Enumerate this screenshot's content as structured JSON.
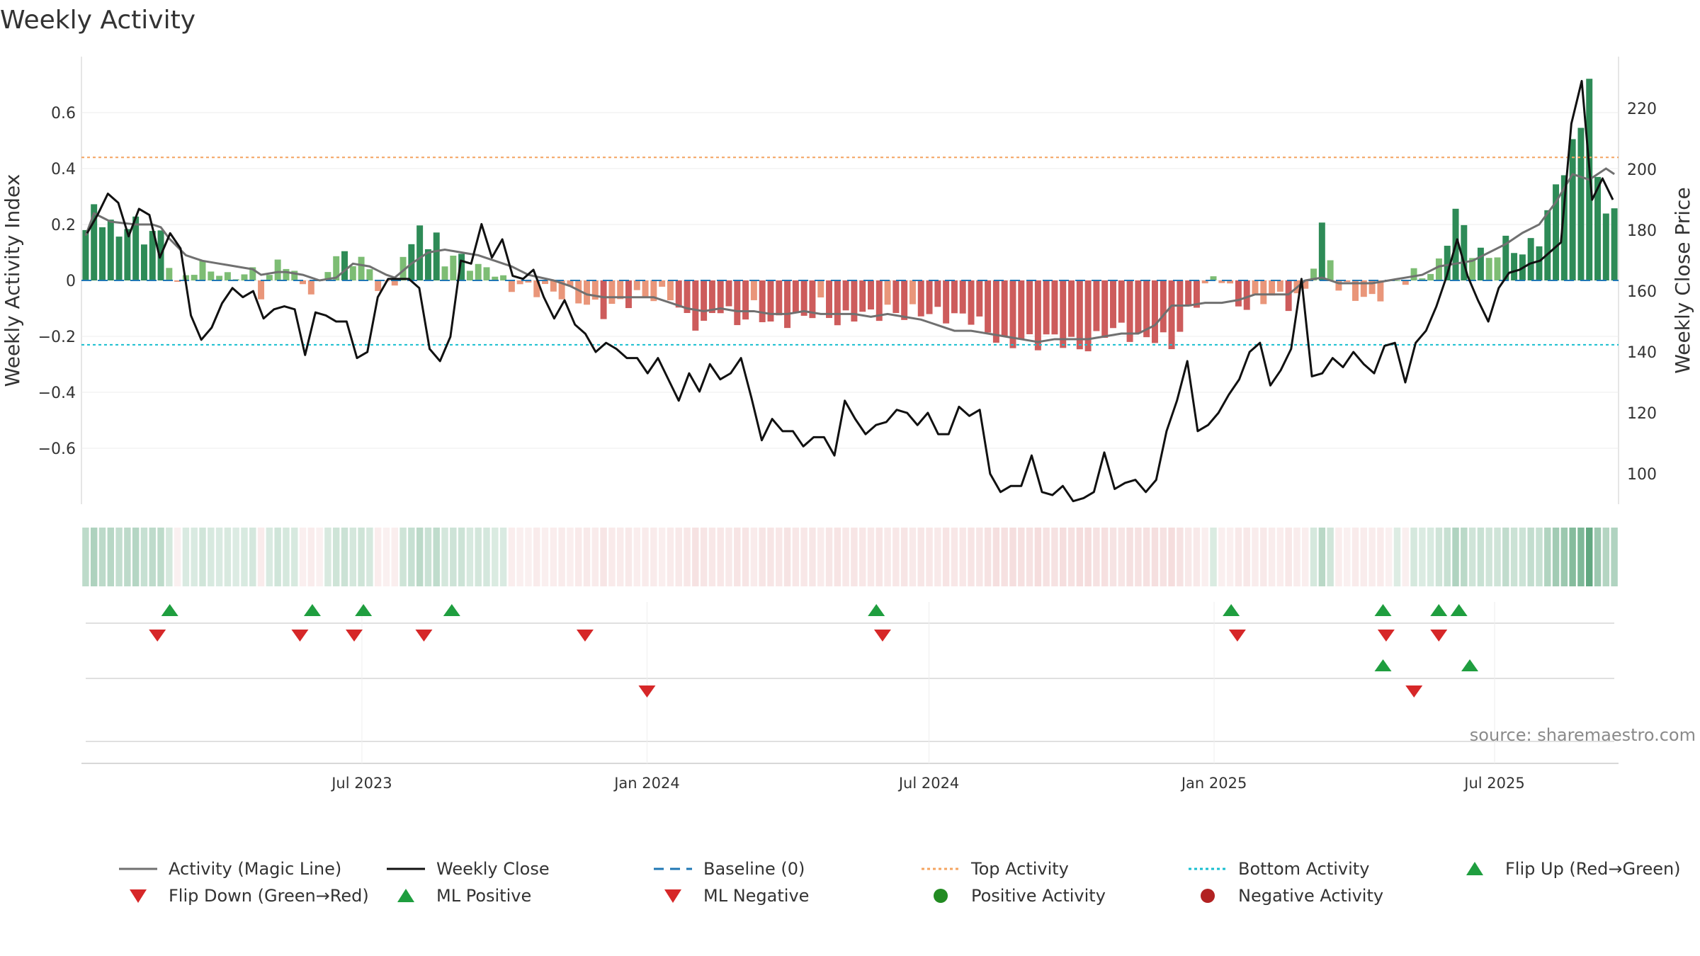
{
  "title": "Weekly Activity",
  "source": "source: sharemaestro.com",
  "colors": {
    "strong_green": "#2e8b57",
    "light_green": "#7dbd74",
    "strong_red": "#cd5c5c",
    "light_red": "#e9967a",
    "magic_line": "#707070",
    "close_line": "#111111",
    "baseline": "#1f77b4",
    "top_line": "#f4a460",
    "bottom_line": "#17becf",
    "marker_up": "#1f9e3f",
    "marker_down": "#d62728",
    "dot_pos": "#228b22",
    "dot_neg": "#b22222"
  },
  "chart_data": {
    "type": "bar",
    "start_date": "2023-01-01",
    "end_date": "2025-09-19",
    "y_left": {
      "label": "Weekly Activity Index",
      "ylim": [
        -0.8,
        0.8
      ],
      "ticks": [
        0.6,
        0.4,
        0.2,
        0,
        -0.2,
        -0.4,
        -0.6
      ],
      "tick_labels": [
        "0.6",
        "0.4",
        "0.2",
        "0",
        "−0.2",
        "−0.4",
        "−0.6"
      ]
    },
    "y_right": {
      "label": "Weekly Close Price",
      "ylim": [
        90,
        237
      ],
      "ticks": [
        220,
        200,
        180,
        160,
        140,
        120,
        100
      ],
      "tick_labels": [
        "220",
        "200",
        "180",
        "160",
        "140",
        "120",
        "100"
      ]
    },
    "x_ticks": [
      {
        "label": "Jul 2023",
        "date": "2023-07-01"
      },
      {
        "label": "Jan 2024",
        "date": "2024-01-01"
      },
      {
        "label": "Jul 2024",
        "date": "2024-07-01"
      },
      {
        "label": "Jan 2025",
        "date": "2025-01-01"
      },
      {
        "label": "Jul 2025",
        "date": "2025-07-01"
      }
    ],
    "top_activity": 0.44,
    "bottom_activity": -0.23,
    "baseline": 0,
    "activity_knots": [
      [
        0,
        0.18
      ],
      [
        1,
        0.25
      ],
      [
        2,
        0.22
      ],
      [
        3,
        0.2
      ],
      [
        4,
        0.15
      ],
      [
        5,
        0.21
      ],
      [
        6,
        0.2
      ],
      [
        7,
        0.14
      ],
      [
        8,
        0.19
      ],
      [
        9,
        0.15
      ],
      [
        10,
        0.07
      ],
      [
        11,
        -0.01
      ],
      [
        12,
        0.0
      ],
      [
        13,
        0.05
      ],
      [
        14,
        0.05
      ],
      [
        15,
        0.03
      ],
      [
        16,
        0.04
      ],
      [
        17,
        0.0
      ],
      [
        18,
        0.02
      ],
      [
        19,
        0.03
      ],
      [
        20,
        0.02
      ],
      [
        21,
        -0.04
      ],
      [
        22,
        0.01
      ],
      [
        23,
        0.06
      ],
      [
        24,
        0.07
      ],
      [
        25,
        0.01
      ],
      [
        26,
        -0.01
      ],
      [
        27,
        -0.03
      ],
      [
        28,
        -0.03
      ],
      [
        29,
        0.05
      ],
      [
        30,
        0.09
      ],
      [
        31,
        0.08
      ],
      [
        32,
        0.08
      ],
      [
        33,
        0.07
      ],
      [
        34,
        0.03
      ],
      [
        35,
        -0.01
      ],
      [
        36,
        -0.03
      ],
      [
        37,
        -0.01
      ],
      [
        38,
        0.1
      ],
      [
        39,
        0.1
      ],
      [
        40,
        0.22
      ],
      [
        41,
        0.11
      ],
      [
        42,
        0.15
      ],
      [
        43,
        0.08
      ],
      [
        44,
        0.07
      ],
      [
        45,
        0.09
      ],
      [
        46,
        0.06
      ],
      [
        47,
        0.03
      ],
      [
        48,
        0.06
      ],
      [
        50,
        -0.01
      ],
      [
        54,
        -0.03
      ],
      [
        58,
        -0.05
      ],
      [
        60,
        -0.08
      ],
      [
        62,
        -0.11
      ],
      [
        64,
        -0.08
      ],
      [
        66,
        -0.06
      ],
      [
        70,
        -0.05
      ],
      [
        72,
        -0.14
      ],
      [
        74,
        -0.16
      ],
      [
        76,
        -0.09
      ],
      [
        78,
        -0.15
      ],
      [
        80,
        -0.1
      ],
      [
        82,
        -0.15
      ],
      [
        84,
        -0.14
      ],
      [
        86,
        -0.13
      ],
      [
        88,
        -0.09
      ],
      [
        90,
        -0.15
      ],
      [
        92,
        -0.12
      ],
      [
        94,
        -0.12
      ],
      [
        96,
        -0.11
      ],
      [
        98,
        -0.12
      ],
      [
        100,
        -0.11
      ],
      [
        102,
        -0.12
      ],
      [
        104,
        -0.13
      ],
      [
        106,
        -0.13
      ],
      [
        108,
        -0.18
      ],
      [
        110,
        -0.23
      ],
      [
        112,
        -0.21
      ],
      [
        114,
        -0.22
      ],
      [
        116,
        -0.2
      ],
      [
        118,
        -0.23
      ],
      [
        120,
        -0.24
      ],
      [
        122,
        -0.18
      ],
      [
        124,
        -0.17
      ],
      [
        126,
        -0.21
      ],
      [
        128,
        -0.2
      ],
      [
        130,
        -0.23
      ],
      [
        132,
        -0.12
      ],
      [
        134,
        -0.02
      ],
      [
        136,
        0.02
      ],
      [
        138,
        -0.09
      ],
      [
        140,
        -0.08
      ],
      [
        142,
        -0.05
      ],
      [
        144,
        -0.08
      ],
      [
        146,
        -0.04
      ],
      [
        148,
        0.18
      ],
      [
        150,
        -0.02
      ],
      [
        152,
        -0.05
      ],
      [
        154,
        -0.07
      ],
      [
        156,
        -0.02
      ],
      [
        158,
        0.01
      ],
      [
        160,
        0.02
      ],
      [
        162,
        0.05
      ],
      [
        164,
        0.25
      ],
      [
        166,
        0.11
      ],
      [
        168,
        0.08
      ],
      [
        170,
        0.13
      ],
      [
        172,
        0.1
      ],
      [
        174,
        0.15
      ],
      [
        176,
        0.33
      ],
      [
        178,
        0.48
      ],
      [
        179,
        0.55
      ],
      [
        180,
        0.74
      ],
      [
        181,
        0.34
      ],
      [
        182,
        0.26
      ]
    ],
    "weekly_close": [
      [
        0,
        179
      ],
      [
        1,
        185
      ],
      [
        2,
        192
      ],
      [
        3,
        189
      ],
      [
        4,
        178
      ],
      [
        5,
        187
      ],
      [
        6,
        185
      ],
      [
        7,
        171
      ],
      [
        8,
        179
      ],
      [
        9,
        174
      ],
      [
        10,
        152
      ],
      [
        11,
        144
      ],
      [
        12,
        148
      ],
      [
        13,
        156
      ],
      [
        14,
        161
      ],
      [
        15,
        158
      ],
      [
        16,
        160
      ],
      [
        17,
        151
      ],
      [
        18,
        154
      ],
      [
        19,
        155
      ],
      [
        20,
        154
      ],
      [
        21,
        139
      ],
      [
        22,
        153
      ],
      [
        23,
        152
      ],
      [
        24,
        150
      ],
      [
        25,
        150
      ],
      [
        26,
        138
      ],
      [
        27,
        140
      ],
      [
        28,
        158
      ],
      [
        29,
        164
      ],
      [
        30,
        164
      ],
      [
        31,
        164
      ],
      [
        32,
        161
      ],
      [
        33,
        141
      ],
      [
        34,
        137
      ],
      [
        35,
        145
      ],
      [
        36,
        170
      ],
      [
        37,
        169
      ],
      [
        38,
        182
      ],
      [
        39,
        171
      ],
      [
        40,
        177
      ],
      [
        41,
        165
      ],
      [
        42,
        164
      ],
      [
        43,
        167
      ],
      [
        44,
        158
      ],
      [
        45,
        151
      ],
      [
        46,
        157
      ],
      [
        47,
        149
      ],
      [
        48,
        146
      ],
      [
        49,
        140
      ],
      [
        50,
        143
      ],
      [
        51,
        141
      ],
      [
        52,
        138
      ],
      [
        53,
        138
      ],
      [
        54,
        133
      ],
      [
        55,
        138
      ],
      [
        56,
        131
      ],
      [
        57,
        124
      ],
      [
        58,
        133
      ],
      [
        59,
        127
      ],
      [
        60,
        136
      ],
      [
        61,
        131
      ],
      [
        62,
        133
      ],
      [
        63,
        138
      ],
      [
        64,
        125
      ],
      [
        65,
        111
      ],
      [
        66,
        118
      ],
      [
        67,
        114
      ],
      [
        68,
        114
      ],
      [
        69,
        109
      ],
      [
        70,
        112
      ],
      [
        71,
        112
      ],
      [
        72,
        106
      ],
      [
        73,
        124
      ],
      [
        74,
        118
      ],
      [
        75,
        113
      ],
      [
        76,
        116
      ],
      [
        77,
        117
      ],
      [
        78,
        121
      ],
      [
        79,
        120
      ],
      [
        80,
        116
      ],
      [
        81,
        120
      ],
      [
        82,
        113
      ],
      [
        83,
        113
      ],
      [
        84,
        122
      ],
      [
        85,
        119
      ],
      [
        86,
        121
      ],
      [
        87,
        100
      ],
      [
        88,
        94
      ],
      [
        89,
        96
      ],
      [
        90,
        96
      ],
      [
        91,
        106
      ],
      [
        92,
        94
      ],
      [
        93,
        93
      ],
      [
        94,
        96
      ],
      [
        95,
        91
      ],
      [
        96,
        92
      ],
      [
        97,
        94
      ],
      [
        98,
        107
      ],
      [
        99,
        95
      ],
      [
        100,
        97
      ],
      [
        101,
        98
      ],
      [
        102,
        94
      ],
      [
        103,
        98
      ],
      [
        104,
        114
      ],
      [
        105,
        124
      ],
      [
        106,
        137
      ],
      [
        107,
        114
      ],
      [
        108,
        116
      ],
      [
        109,
        120
      ],
      [
        110,
        126
      ],
      [
        111,
        131
      ],
      [
        112,
        140
      ],
      [
        113,
        143
      ],
      [
        114,
        129
      ],
      [
        115,
        134
      ],
      [
        116,
        141
      ],
      [
        117,
        164
      ],
      [
        118,
        132
      ],
      [
        119,
        133
      ],
      [
        120,
        138
      ],
      [
        121,
        135
      ],
      [
        122,
        140
      ],
      [
        123,
        136
      ],
      [
        124,
        133
      ],
      [
        125,
        142
      ],
      [
        126,
        143
      ],
      [
        127,
        130
      ],
      [
        128,
        143
      ],
      [
        129,
        147
      ],
      [
        130,
        155
      ],
      [
        131,
        165
      ],
      [
        132,
        177
      ],
      [
        133,
        165
      ],
      [
        134,
        157
      ],
      [
        135,
        150
      ],
      [
        136,
        161
      ],
      [
        137,
        166
      ],
      [
        138,
        167
      ],
      [
        139,
        169
      ],
      [
        140,
        170
      ],
      [
        141,
        173
      ],
      [
        142,
        176
      ],
      [
        143,
        215
      ],
      [
        144,
        229
      ],
      [
        145,
        190
      ],
      [
        146,
        197
      ],
      [
        147,
        190
      ]
    ],
    "magic_line": [
      [
        0,
        0.16
      ],
      [
        1,
        0.24
      ],
      [
        3,
        0.21
      ],
      [
        6,
        0.2
      ],
      [
        8,
        0.2
      ],
      [
        9,
        0.19
      ],
      [
        10,
        0.15
      ],
      [
        11,
        0.12
      ],
      [
        12,
        0.09
      ],
      [
        14,
        0.07
      ],
      [
        16,
        0.06
      ],
      [
        18,
        0.05
      ],
      [
        20,
        0.04
      ],
      [
        21,
        0.02
      ],
      [
        23,
        0.03
      ],
      [
        24,
        0.03
      ],
      [
        26,
        0.02
      ],
      [
        28,
        0.0
      ],
      [
        30,
        0.01
      ],
      [
        32,
        0.06
      ],
      [
        34,
        0.05
      ],
      [
        36,
        0.02
      ],
      [
        37,
        0.01
      ],
      [
        39,
        0.06
      ],
      [
        41,
        0.1
      ],
      [
        43,
        0.11
      ],
      [
        45,
        0.1
      ],
      [
        47,
        0.09
      ],
      [
        49,
        0.07
      ],
      [
        51,
        0.05
      ],
      [
        53,
        0.02
      ],
      [
        56,
        0.0
      ],
      [
        58,
        -0.02
      ],
      [
        60,
        -0.05
      ],
      [
        62,
        -0.06
      ],
      [
        64,
        -0.06
      ],
      [
        66,
        -0.06
      ],
      [
        68,
        -0.06
      ],
      [
        70,
        -0.08
      ],
      [
        72,
        -0.1
      ],
      [
        74,
        -0.11
      ],
      [
        76,
        -0.1
      ],
      [
        78,
        -0.11
      ],
      [
        80,
        -0.11
      ],
      [
        82,
        -0.12
      ],
      [
        84,
        -0.12
      ],
      [
        86,
        -0.11
      ],
      [
        88,
        -0.12
      ],
      [
        90,
        -0.12
      ],
      [
        92,
        -0.12
      ],
      [
        94,
        -0.13
      ],
      [
        96,
        -0.12
      ],
      [
        98,
        -0.13
      ],
      [
        100,
        -0.14
      ],
      [
        102,
        -0.16
      ],
      [
        104,
        -0.18
      ],
      [
        106,
        -0.18
      ],
      [
        108,
        -0.19
      ],
      [
        110,
        -0.2
      ],
      [
        112,
        -0.21
      ],
      [
        114,
        -0.22
      ],
      [
        116,
        -0.21
      ],
      [
        118,
        -0.21
      ],
      [
        120,
        -0.21
      ],
      [
        122,
        -0.2
      ],
      [
        124,
        -0.19
      ],
      [
        126,
        -0.19
      ],
      [
        128,
        -0.16
      ],
      [
        130,
        -0.09
      ],
      [
        132,
        -0.09
      ],
      [
        134,
        -0.08
      ],
      [
        136,
        -0.08
      ],
      [
        138,
        -0.07
      ],
      [
        140,
        -0.05
      ],
      [
        142,
        -0.05
      ],
      [
        144,
        -0.05
      ],
      [
        146,
        0.0
      ],
      [
        148,
        0.01
      ],
      [
        150,
        -0.01
      ],
      [
        152,
        -0.01
      ],
      [
        154,
        -0.01
      ],
      [
        156,
        0.0
      ],
      [
        158,
        0.01
      ],
      [
        160,
        0.02
      ],
      [
        162,
        0.05
      ],
      [
        164,
        0.06
      ],
      [
        166,
        0.07
      ],
      [
        168,
        0.1
      ],
      [
        170,
        0.13
      ],
      [
        172,
        0.17
      ],
      [
        174,
        0.2
      ],
      [
        176,
        0.28
      ],
      [
        178,
        0.38
      ],
      [
        180,
        0.36
      ],
      [
        182,
        0.4
      ],
      [
        183,
        0.38
      ]
    ],
    "flip_up_dates": [
      "2023-02-27",
      "2023-05-30",
      "2023-07-02",
      "2023-08-28",
      "2024-05-28",
      "2025-01-12",
      "2025-04-20",
      "2025-05-26",
      "2025-06-08"
    ],
    "flip_down_dates": [
      "2023-02-19",
      "2023-05-22",
      "2023-06-26",
      "2023-08-10",
      "2023-11-22",
      "2024-06-01",
      "2025-01-16",
      "2025-04-22",
      "2025-05-26"
    ],
    "ml_positive_dates": [
      "2025-04-20",
      "2025-06-15"
    ],
    "ml_negative_dates": [
      "2024-01-01",
      "2025-05-10"
    ],
    "legend": [
      {
        "label": "Activity (Magic Line)",
        "symbol": "line-gray"
      },
      {
        "label": "Weekly Close",
        "symbol": "line-black"
      },
      {
        "label": "Baseline (0)",
        "symbol": "dash-blue"
      },
      {
        "label": "Top Activity",
        "symbol": "dot-orange"
      },
      {
        "label": "Bottom Activity",
        "symbol": "dot-cyan"
      },
      {
        "label": "Flip Up (Red→Green)",
        "symbol": "triangle-up-green"
      },
      {
        "label": "Flip Down (Green→Red)",
        "symbol": "triangle-down-red"
      },
      {
        "label": "ML Positive",
        "symbol": "triangle-up-green"
      },
      {
        "label": "ML Negative",
        "symbol": "triangle-down-red"
      },
      {
        "label": "Positive Activity",
        "symbol": "circle-green"
      },
      {
        "label": "Negative Activity",
        "symbol": "circle-red"
      }
    ]
  }
}
